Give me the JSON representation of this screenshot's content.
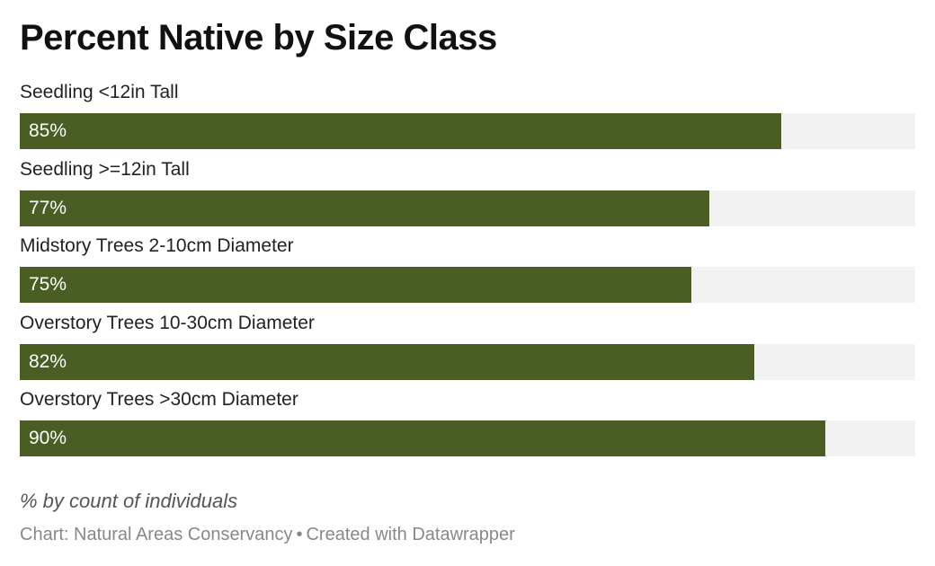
{
  "title": "Percent Native by Size Class",
  "chart_data": {
    "type": "bar",
    "orientation": "horizontal",
    "title": "Percent Native by Size Class",
    "categories": [
      "Seedling <12in Tall",
      "Seedling >=12in Tall",
      "Midstory Trees 2-10cm Diameter",
      "Overstory Trees 10-30cm Diameter",
      "Overstory Trees >30cm Diameter"
    ],
    "values": [
      85,
      77,
      75,
      82,
      90
    ],
    "value_labels": [
      "85%",
      "77%",
      "75%",
      "82%",
      "90%"
    ],
    "xlim": [
      0,
      100
    ],
    "unit": "%",
    "grid": false,
    "bar_color": "#4a5e23",
    "track_color": "#f2f2f2"
  },
  "notes": "% by count of individuals",
  "footer": {
    "source": "Chart: Natural Areas Conservancy",
    "separator": "•",
    "credit": "Created with Datawrapper"
  }
}
